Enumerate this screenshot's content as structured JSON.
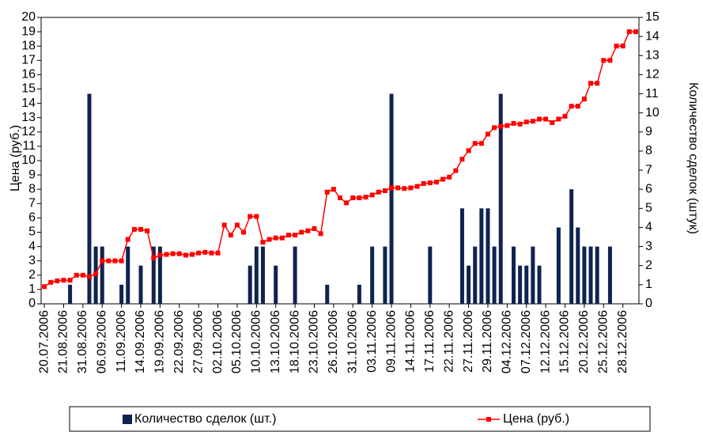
{
  "chart_data": {
    "type": "bar-line",
    "ylabel": "Цена (руб.)",
    "y2label": "Количество сделок (штук)",
    "categories": [
      "20.07.2006",
      null,
      null,
      "21.08.2006",
      null,
      null,
      "31.08.2006",
      null,
      null,
      "06.09.2006",
      null,
      null,
      "11.09.2006",
      null,
      null,
      "14.09.2006",
      null,
      null,
      "19.09.2006",
      null,
      null,
      "22.09.2006",
      null,
      null,
      "27.09.2006",
      null,
      null,
      "02.10.2006",
      null,
      null,
      "05.10.2006",
      null,
      null,
      "10.10.2006",
      null,
      null,
      "13.10.2006",
      null,
      null,
      "18.10.2006",
      null,
      null,
      "23.10.2006",
      null,
      null,
      "26.10.2006",
      null,
      null,
      "31.10.2006",
      null,
      null,
      "03.11.2006",
      null,
      null,
      "09.11.2006",
      null,
      null,
      "14.11.2006",
      null,
      null,
      "17.11.2006",
      null,
      null,
      "22.11.2006",
      null,
      null,
      "27.11.2006",
      null,
      null,
      "29.11.2006",
      null,
      null,
      "04.12.2006",
      null,
      null,
      "07.12.2006",
      null,
      null,
      "12.12.2006",
      null,
      null,
      "15.12.2006",
      null,
      null,
      "20.12.2006",
      null,
      null,
      "25.12.2006",
      null,
      null,
      "28.12.2006",
      null,
      null
    ],
    "series": [
      {
        "name": "Количество сделок (шт.)",
        "type": "bar",
        "axis": "y2",
        "color": "#0f2350",
        "values": [
          0,
          0,
          0,
          0,
          1,
          0,
          0,
          11,
          3,
          3,
          0,
          0,
          1,
          3,
          0,
          2,
          0,
          3,
          3,
          0,
          0,
          0,
          0,
          0,
          0,
          0,
          0,
          0,
          0,
          0,
          0,
          0,
          2,
          3,
          3,
          0,
          2,
          0,
          0,
          3,
          0,
          0,
          0,
          0,
          1,
          0,
          0,
          0,
          0,
          1,
          0,
          3,
          0,
          3,
          11,
          0,
          0,
          0,
          0,
          0,
          3,
          0,
          0,
          0,
          0,
          5,
          2,
          3,
          5,
          5,
          3,
          11,
          0,
          3,
          2,
          2,
          3,
          2,
          0,
          0,
          4,
          0,
          6,
          4,
          3,
          3,
          3,
          0,
          3,
          0,
          0,
          0,
          0
        ]
      },
      {
        "name": "Цена (руб.)",
        "type": "line",
        "axis": "y",
        "color": "#ff0000",
        "values": [
          1.2,
          1.5,
          1.6,
          1.65,
          1.65,
          2.0,
          2.0,
          1.9,
          2.1,
          3.0,
          3.0,
          3.0,
          3.0,
          4.5,
          5.2,
          5.2,
          5.1,
          3.2,
          3.4,
          3.45,
          3.5,
          3.5,
          3.4,
          3.45,
          3.55,
          3.6,
          3.55,
          3.55,
          5.5,
          4.8,
          5.5,
          5.0,
          6.1,
          6.1,
          4.3,
          4.5,
          4.6,
          4.6,
          4.8,
          4.8,
          5.0,
          5.1,
          5.25,
          4.9,
          7.8,
          8.0,
          7.4,
          7.05,
          7.4,
          7.4,
          7.45,
          7.6,
          7.8,
          7.9,
          8.1,
          8.1,
          8.05,
          8.1,
          8.2,
          8.4,
          8.45,
          8.5,
          8.7,
          8.85,
          9.3,
          10.1,
          10.7,
          11.2,
          11.2,
          11.85,
          12.3,
          12.4,
          12.45,
          12.6,
          12.55,
          12.7,
          12.75,
          12.9,
          12.9,
          12.65,
          12.9,
          13.1,
          13.8,
          13.8,
          14.3,
          15.4,
          15.4,
          17.0,
          17.0,
          18.0,
          18.0,
          19.0,
          19.0
        ]
      }
    ],
    "ylim": [
      0,
      20
    ],
    "yticks": [
      0,
      1,
      2,
      3,
      4,
      5,
      6,
      7,
      8,
      9,
      10,
      11,
      12,
      13,
      14,
      15,
      16,
      17,
      18,
      19,
      20
    ],
    "y2lim": [
      0,
      15
    ],
    "y2ticks": [
      0,
      1,
      2,
      3,
      4,
      5,
      6,
      7,
      8,
      9,
      10,
      11,
      12,
      13,
      14,
      15
    ],
    "legend": "bottom"
  }
}
